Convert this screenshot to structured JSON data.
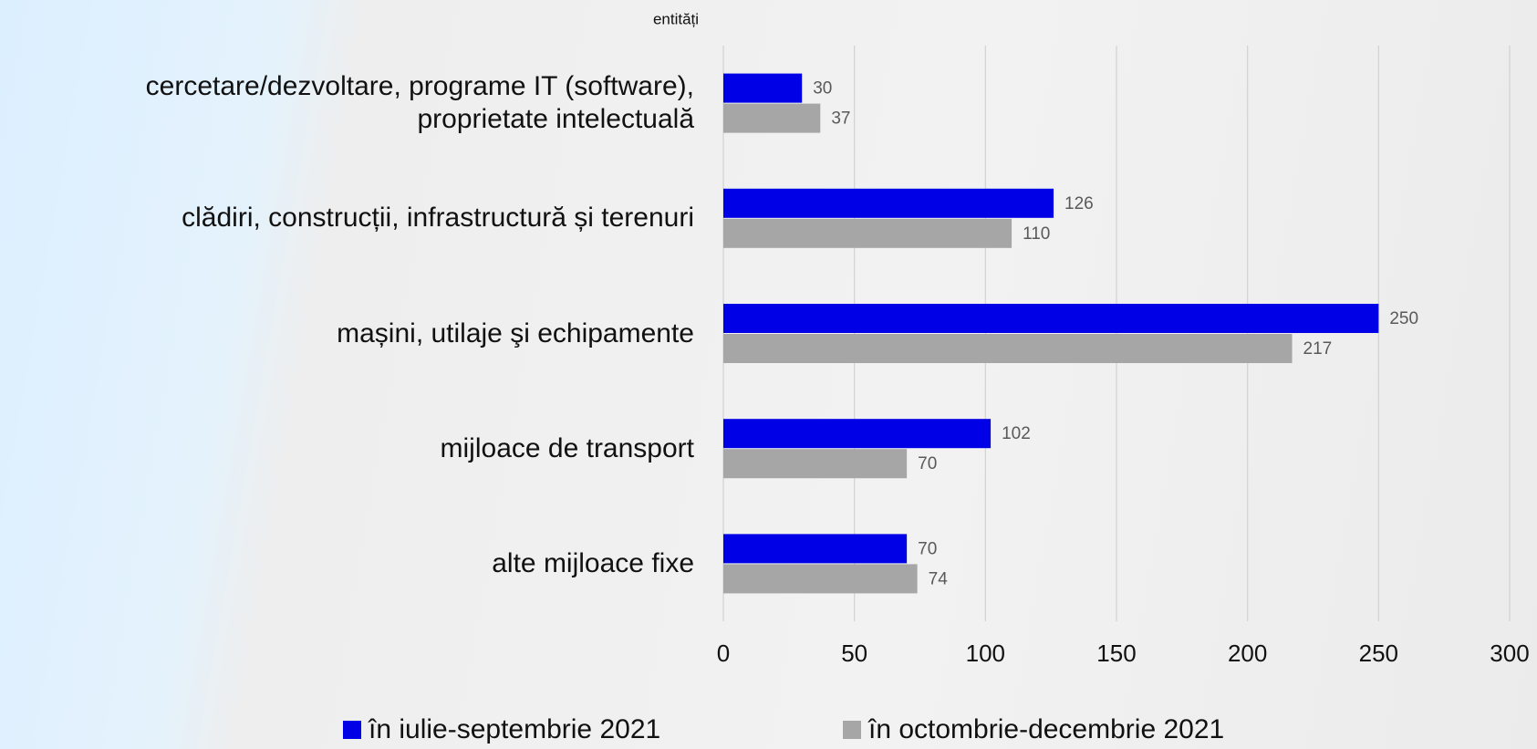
{
  "chart_data": {
    "type": "bar",
    "orientation": "horizontal",
    "axis_label": "entități",
    "categories": [
      "cercetare/dezvoltare, programe IT (software),\nproprietate intelectuală",
      "clădiri, construcții, infrastructură și terenuri",
      "mașini, utilaje şi echipamente",
      "mijloace de transport",
      "alte mijloace fixe"
    ],
    "series": [
      {
        "name": "în iulie-septembrie 2021",
        "color": "#0000e6",
        "values": [
          30,
          126,
          250,
          102,
          70
        ]
      },
      {
        "name": "în octombrie-decembrie 2021",
        "color": "#a6a6a6",
        "values": [
          37,
          110,
          217,
          70,
          74
        ]
      }
    ],
    "xlim": [
      0,
      300
    ],
    "xticks": [
      0,
      50,
      100,
      150,
      200,
      250,
      300
    ],
    "grid": true,
    "legend": "bottom"
  }
}
